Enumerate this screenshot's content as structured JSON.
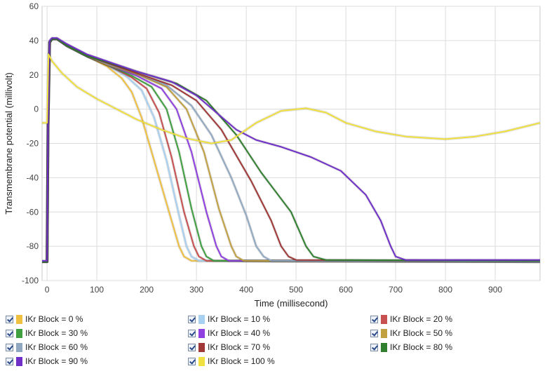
{
  "chart_data": {
    "type": "line",
    "xlabel": "Time (millisecond)",
    "ylabel": "Transmembrane potential (millivolt)",
    "xlim": [
      -10,
      990
    ],
    "ylim": [
      -100,
      60
    ],
    "x_ticks": [
      0,
      100,
      200,
      300,
      400,
      500,
      600,
      700,
      800,
      900
    ],
    "y_ticks": [
      60,
      40,
      20,
      0,
      -20,
      -40,
      -60,
      -80,
      -100
    ],
    "x_tick_labels": [
      "0",
      "100",
      "200",
      "300",
      "400",
      "500",
      "600",
      "700",
      "800",
      "900"
    ],
    "y_tick_labels": [
      "60",
      "40",
      "20",
      "0",
      "-20",
      "-40",
      "-60",
      "-80",
      "-100"
    ],
    "grid": true,
    "legend_position": "bottom",
    "series": [
      {
        "name": "IKr Block = 0 %",
        "color": "#f0c040",
        "points": [
          [
            -10,
            -89
          ],
          [
            0,
            -89
          ],
          [
            2,
            -10
          ],
          [
            5,
            39
          ],
          [
            10,
            41
          ],
          [
            20,
            41
          ],
          [
            40,
            37
          ],
          [
            80,
            31
          ],
          [
            120,
            25
          ],
          [
            150,
            18
          ],
          [
            170,
            10
          ],
          [
            190,
            -5
          ],
          [
            210,
            -25
          ],
          [
            230,
            -45
          ],
          [
            250,
            -65
          ],
          [
            265,
            -80
          ],
          [
            275,
            -86
          ],
          [
            290,
            -88.5
          ],
          [
            990,
            -89
          ]
        ]
      },
      {
        "name": "IKr Block = 10 %",
        "color": "#a8d0f0",
        "points": [
          [
            -10,
            -89
          ],
          [
            0,
            -89
          ],
          [
            2,
            -10
          ],
          [
            5,
            39
          ],
          [
            10,
            41
          ],
          [
            20,
            41
          ],
          [
            40,
            37
          ],
          [
            80,
            31
          ],
          [
            120,
            26
          ],
          [
            160,
            19
          ],
          [
            190,
            11
          ],
          [
            215,
            -5
          ],
          [
            240,
            -30
          ],
          [
            265,
            -62
          ],
          [
            280,
            -80
          ],
          [
            290,
            -86
          ],
          [
            305,
            -88.5
          ],
          [
            990,
            -89
          ]
        ]
      },
      {
        "name": "IKr Block = 20 %",
        "color": "#c85050",
        "points": [
          [
            -10,
            -89
          ],
          [
            0,
            -89
          ],
          [
            2,
            -10
          ],
          [
            5,
            39
          ],
          [
            10,
            41
          ],
          [
            20,
            41
          ],
          [
            40,
            37
          ],
          [
            80,
            31
          ],
          [
            120,
            26
          ],
          [
            170,
            18.5
          ],
          [
            200,
            12
          ],
          [
            225,
            -2
          ],
          [
            250,
            -28
          ],
          [
            275,
            -60
          ],
          [
            295,
            -80
          ],
          [
            305,
            -86
          ],
          [
            320,
            -88.5
          ],
          [
            990,
            -89
          ]
        ]
      },
      {
        "name": "IKr Block = 30 %",
        "color": "#40a040",
        "points": [
          [
            -10,
            -89
          ],
          [
            0,
            -89
          ],
          [
            2,
            -10
          ],
          [
            5,
            39
          ],
          [
            10,
            41
          ],
          [
            20,
            41
          ],
          [
            40,
            37
          ],
          [
            80,
            31
          ],
          [
            120,
            26
          ],
          [
            170,
            19.5
          ],
          [
            210,
            13
          ],
          [
            240,
            0
          ],
          [
            265,
            -25
          ],
          [
            290,
            -58
          ],
          [
            310,
            -80
          ],
          [
            320,
            -86
          ],
          [
            335,
            -88.5
          ],
          [
            990,
            -89
          ]
        ]
      },
      {
        "name": "IKr Block = 40 %",
        "color": "#9040e0",
        "points": [
          [
            -10,
            -89
          ],
          [
            0,
            -89
          ],
          [
            2,
            -10
          ],
          [
            5,
            39
          ],
          [
            10,
            41
          ],
          [
            20,
            41
          ],
          [
            40,
            37
          ],
          [
            80,
            31
          ],
          [
            120,
            26
          ],
          [
            180,
            19.5
          ],
          [
            230,
            12
          ],
          [
            260,
            0
          ],
          [
            290,
            -25
          ],
          [
            320,
            -60
          ],
          [
            340,
            -80
          ],
          [
            350,
            -86
          ],
          [
            365,
            -88.5
          ],
          [
            990,
            -89
          ]
        ]
      },
      {
        "name": "IKr Block = 50 %",
        "color": "#c0a040",
        "points": [
          [
            -10,
            -89
          ],
          [
            0,
            -89
          ],
          [
            2,
            -10
          ],
          [
            5,
            39
          ],
          [
            10,
            41
          ],
          [
            20,
            41
          ],
          [
            40,
            37
          ],
          [
            80,
            31
          ],
          [
            120,
            26
          ],
          [
            180,
            20.5
          ],
          [
            240,
            13
          ],
          [
            280,
            0
          ],
          [
            315,
            -25
          ],
          [
            345,
            -58
          ],
          [
            370,
            -80
          ],
          [
            380,
            -86
          ],
          [
            395,
            -88.5
          ],
          [
            990,
            -89
          ]
        ]
      },
      {
        "name": "IKr Block = 60 %",
        "color": "#90a8c0",
        "points": [
          [
            -10,
            -89
          ],
          [
            0,
            -89
          ],
          [
            2,
            -10
          ],
          [
            5,
            39
          ],
          [
            10,
            41
          ],
          [
            20,
            41
          ],
          [
            40,
            37
          ],
          [
            80,
            31
          ],
          [
            120,
            26.5
          ],
          [
            180,
            21
          ],
          [
            240,
            14
          ],
          [
            290,
            2
          ],
          [
            330,
            -15
          ],
          [
            370,
            -40
          ],
          [
            400,
            -62
          ],
          [
            420,
            -80
          ],
          [
            435,
            -86
          ],
          [
            450,
            -88.5
          ],
          [
            990,
            -89
          ]
        ]
      },
      {
        "name": "IKr Block = 70 %",
        "color": "#a03838",
        "points": [
          [
            -10,
            -89
          ],
          [
            0,
            -89
          ],
          [
            2,
            -10
          ],
          [
            5,
            39
          ],
          [
            10,
            41
          ],
          [
            20,
            41
          ],
          [
            40,
            37
          ],
          [
            80,
            31
          ],
          [
            120,
            27
          ],
          [
            180,
            21
          ],
          [
            250,
            14
          ],
          [
            300,
            5
          ],
          [
            350,
            -12
          ],
          [
            410,
            -42
          ],
          [
            450,
            -65
          ],
          [
            470,
            -80
          ],
          [
            485,
            -86
          ],
          [
            500,
            -88
          ],
          [
            990,
            -88.5
          ]
        ]
      },
      {
        "name": "IKr Block = 80 %",
        "color": "#308030",
        "points": [
          [
            -10,
            -89
          ],
          [
            0,
            -89
          ],
          [
            2,
            -10
          ],
          [
            5,
            39
          ],
          [
            10,
            41
          ],
          [
            20,
            41
          ],
          [
            40,
            37
          ],
          [
            80,
            31
          ],
          [
            120,
            27.5
          ],
          [
            180,
            22
          ],
          [
            260,
            15
          ],
          [
            320,
            5
          ],
          [
            380,
            -15
          ],
          [
            430,
            -37
          ],
          [
            490,
            -60
          ],
          [
            520,
            -80
          ],
          [
            535,
            -86
          ],
          [
            560,
            -88
          ],
          [
            990,
            -88.5
          ]
        ]
      },
      {
        "name": "IKr Block = 90 %",
        "color": "#7030c8",
        "points": [
          [
            -10,
            -88.5
          ],
          [
            0,
            -88.5
          ],
          [
            2,
            -10
          ],
          [
            5,
            40
          ],
          [
            10,
            41.5
          ],
          [
            20,
            41.5
          ],
          [
            40,
            38
          ],
          [
            80,
            32
          ],
          [
            120,
            28
          ],
          [
            180,
            22
          ],
          [
            250,
            16
          ],
          [
            300,
            8
          ],
          [
            340,
            -2
          ],
          [
            380,
            -12
          ],
          [
            420,
            -18
          ],
          [
            470,
            -22
          ],
          [
            530,
            -28
          ],
          [
            590,
            -36
          ],
          [
            640,
            -50
          ],
          [
            670,
            -65
          ],
          [
            690,
            -80
          ],
          [
            700,
            -86
          ],
          [
            720,
            -88
          ],
          [
            990,
            -88
          ]
        ]
      },
      {
        "name": "IKr Block = 100 %",
        "color": "#f0e040",
        "points": [
          [
            -10,
            -8
          ],
          [
            0,
            -8
          ],
          [
            3,
            32
          ],
          [
            10,
            28
          ],
          [
            30,
            21
          ],
          [
            60,
            13
          ],
          [
            100,
            6
          ],
          [
            140,
            0
          ],
          [
            180,
            -6
          ],
          [
            230,
            -12
          ],
          [
            280,
            -17
          ],
          [
            330,
            -20
          ],
          [
            370,
            -18
          ],
          [
            420,
            -8
          ],
          [
            470,
            -1
          ],
          [
            520,
            0.5
          ],
          [
            560,
            -2
          ],
          [
            600,
            -8
          ],
          [
            660,
            -13
          ],
          [
            720,
            -16
          ],
          [
            800,
            -17.5
          ],
          [
            860,
            -16
          ],
          [
            920,
            -13
          ],
          [
            990,
            -8
          ]
        ]
      }
    ]
  }
}
